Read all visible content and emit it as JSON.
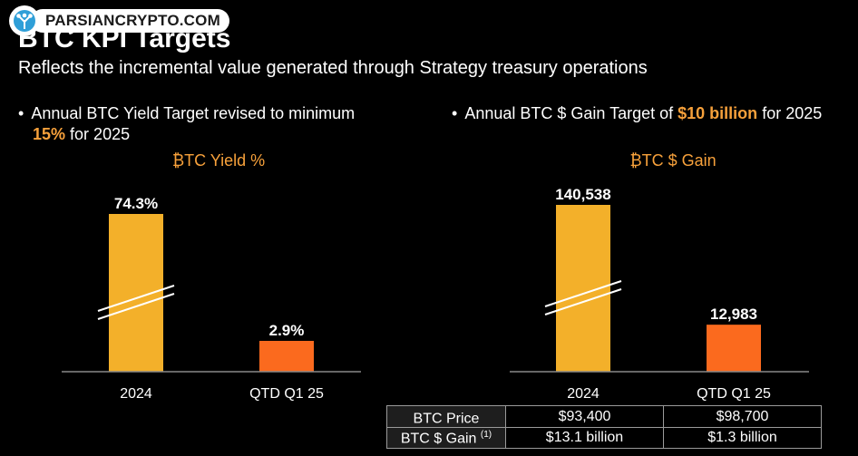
{
  "logo": {
    "text": "PARSIANCRYPTO.COM",
    "icon": "tree-logo-icon"
  },
  "title": "BTC KPI Targets",
  "subtitle": "Reflects the incremental value generated through Strategy treasury operations",
  "bullets": {
    "left": {
      "dot": "•",
      "pre": "Annual BTC Yield Target revised to minimum",
      "highlight": "15%",
      "post": "for 2025"
    },
    "right": {
      "dot": "•",
      "pre": "Annual BTC $ Gain Target of",
      "highlight": "$10 billion",
      "post": "for 2025"
    }
  },
  "colors": {
    "accent": "#f7a13b",
    "bar_2024": "#f3b02a",
    "bar_q1": "#fb6a1e",
    "axis": "#888888"
  },
  "chart_data": [
    {
      "type": "bar",
      "title": "₿TC Yield %",
      "categories": [
        "2024",
        "QTD Q1 25"
      ],
      "values": [
        74.3,
        2.9
      ],
      "labels": [
        "74.3%",
        "2.9%"
      ],
      "axis_break_on": "2024"
    },
    {
      "type": "bar",
      "title": "₿TC $ Gain",
      "categories": [
        "2024",
        "QTD Q1 25"
      ],
      "values": [
        140538,
        12983
      ],
      "labels": [
        "140,538",
        "12,983"
      ],
      "axis_break_on": "2024"
    }
  ],
  "table": {
    "rows": [
      {
        "label": "BTC Price",
        "sup": "",
        "v2024": "$93,400",
        "vq1": "$98,700"
      },
      {
        "label": "BTC $ Gain ",
        "sup": "(1)",
        "v2024": "$13.1 billion",
        "vq1": "$1.3 billion"
      }
    ]
  }
}
